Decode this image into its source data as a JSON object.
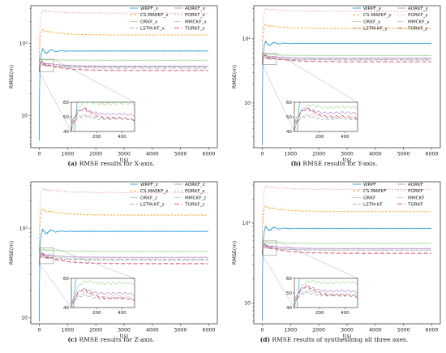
{
  "colors": {
    "WRPF": "#1f9bd6",
    "CS-MAEKF": "#f5a623",
    "ORKF": "#a9d99a",
    "LSTM-KF": "#9aa0a6",
    "AORKF": "#b48cc8",
    "PORKF": "#e7a0c8",
    "MMCKF": "#bdbdbd",
    "TORKF": "#d94060"
  },
  "chart_data": [
    {
      "type": "line",
      "caption_label": "(a)",
      "caption_text": " RMSE results for X-axis.",
      "xlabel": "t(s)",
      "ylabel": "RMSE(m)",
      "yscale": "log",
      "xlim": [
        -300,
        6300
      ],
      "ylim": [
        3.6,
        330
      ],
      "x_ticks": [
        0,
        1000,
        2000,
        3000,
        4000,
        5000,
        6000
      ],
      "y_ticks": [
        {
          "value": 10,
          "label": "10"
        },
        {
          "value": 100,
          "label": "10²"
        }
      ],
      "legend_placement": "top-right",
      "series": [
        {
          "name": "WRPF_x",
          "key": "WRPF",
          "dash": "",
          "steady": 78,
          "peak": 78,
          "start": 4.5,
          "osc": 0.15
        },
        {
          "name": "CS-MAEKF_x",
          "key": "CS-MAEKF",
          "dash": "3,2",
          "steady": 130,
          "peak": 155,
          "start": 55,
          "osc": 0.04
        },
        {
          "name": "ORKF_x",
          "key": "ORKF",
          "dash": "",
          "steady": 58,
          "peak": 60,
          "start": 40,
          "osc": 0.02
        },
        {
          "name": "LSTM-KF_x",
          "key": "LSTM-KF",
          "dash": "5,2",
          "steady": 47,
          "peak": 50,
          "start": 45,
          "osc": 0.02
        },
        {
          "name": "AORKF_x",
          "key": "AORKF",
          "dash": "",
          "steady": 48,
          "peak": 55,
          "start": 45,
          "osc": 0.03
        },
        {
          "name": "PORKF_x",
          "key": "PORKF",
          "dash": "2,2",
          "steady": 260,
          "peak": 290,
          "start": 60,
          "osc": 0.03
        },
        {
          "name": "MMCKF_x",
          "key": "MMCKF",
          "dash": "6,2,1,2",
          "steady": 45,
          "peak": 52,
          "start": 40,
          "osc": 0.02
        },
        {
          "name": "TORKF_x",
          "key": "TORKF",
          "dash": "6,3",
          "steady": 42,
          "peak": 55,
          "start": 40,
          "osc": 0.05
        }
      ],
      "inset": {
        "xlim": [
          0,
          500
        ],
        "ylim": [
          40,
          60
        ],
        "x_ticks": [
          200,
          400
        ],
        "y_ticks": [
          40,
          50,
          60
        ]
      }
    },
    {
      "type": "line",
      "caption_label": "(b)",
      "caption_text": " RMSE results for Y-axis.",
      "xlabel": "t(s)",
      "ylabel": "RMSE(m)",
      "yscale": "log",
      "xlim": [
        -300,
        6300
      ],
      "ylim": [
        2.0,
        330
      ],
      "x_ticks": [
        0,
        1000,
        2000,
        3000,
        4000,
        5000,
        6000
      ],
      "y_ticks": [
        {
          "value": 10,
          "label": "10"
        },
        {
          "value": 100,
          "label": "10²"
        }
      ],
      "legend_placement": "top-right",
      "series": [
        {
          "name": "WRPF_y",
          "key": "WRPF",
          "dash": "",
          "steady": 85,
          "peak": 85,
          "start": 2.2,
          "osc": 0.15
        },
        {
          "name": "CS-MAEKF_y",
          "key": "CS-MAEKF",
          "dash": "3,2",
          "steady": 145,
          "peak": 170,
          "start": 50,
          "osc": 0.04
        },
        {
          "name": "ORKF_y",
          "key": "ORKF",
          "dash": "",
          "steady": 55,
          "peak": 58,
          "start": 40,
          "osc": 0.02
        },
        {
          "name": "LSTM-KF_y",
          "key": "LSTM-KF",
          "dash": "5,2",
          "steady": 47,
          "peak": 50,
          "start": 45,
          "osc": 0.02
        },
        {
          "name": "AORKF_y",
          "key": "AORKF",
          "dash": "",
          "steady": 50,
          "peak": 55,
          "start": 45,
          "osc": 0.03
        },
        {
          "name": "PORKF_y",
          "key": "PORKF",
          "dash": "2,2",
          "steady": 270,
          "peak": 300,
          "start": 60,
          "osc": 0.03
        },
        {
          "name": "MMCKF_y",
          "key": "MMCKF",
          "dash": "6,2,1,2",
          "steady": 48,
          "peak": 52,
          "start": 40,
          "osc": 0.02
        },
        {
          "name": "TORKF_y",
          "key": "TORKF",
          "dash": "6,3",
          "steady": 44,
          "peak": 55,
          "start": 40,
          "osc": 0.05
        }
      ],
      "inset": {
        "xlim": [
          0,
          500
        ],
        "ylim": [
          40,
          60
        ],
        "x_ticks": [
          200,
          400
        ],
        "y_ticks": [
          40,
          50,
          60
        ]
      }
    },
    {
      "type": "line",
      "caption_label": "(c)",
      "caption_text": " RMSE results for Z-axis.",
      "xlabel": "t(s)",
      "ylabel": "RMSE(m)",
      "yscale": "log",
      "xlim": [
        -300,
        6300
      ],
      "ylim": [
        8.5,
        330
      ],
      "x_ticks": [
        0,
        1000,
        2000,
        3000,
        4000,
        5000,
        6000
      ],
      "y_ticks": [
        {
          "value": 10,
          "label": "10"
        },
        {
          "value": 100,
          "label": "10²"
        }
      ],
      "legend_placement": "top-right",
      "series": [
        {
          "name": "WRPF_z",
          "key": "WRPF",
          "dash": "",
          "steady": 92,
          "peak": 92,
          "start": 9,
          "osc": 0.12
        },
        {
          "name": "CS-MAEKF_z",
          "key": "CS-MAEKF",
          "dash": "3,2",
          "steady": 140,
          "peak": 165,
          "start": 55,
          "osc": 0.04
        },
        {
          "name": "ORKF_z",
          "key": "ORKF",
          "dash": "",
          "steady": 55,
          "peak": 58,
          "start": 40,
          "osc": 0.02
        },
        {
          "name": "LSTM-KF_z",
          "key": "LSTM-KF",
          "dash": "5,2",
          "steady": 44,
          "peak": 48,
          "start": 42,
          "osc": 0.02
        },
        {
          "name": "AORKF_z",
          "key": "AORKF",
          "dash": "",
          "steady": 47,
          "peak": 52,
          "start": 42,
          "osc": 0.03
        },
        {
          "name": "PORKF_z",
          "key": "PORKF",
          "dash": "2,2",
          "steady": 250,
          "peak": 280,
          "start": 60,
          "osc": 0.03
        },
        {
          "name": "MMCKF_z",
          "key": "MMCKF",
          "dash": "6,2,1,2",
          "steady": 45,
          "peak": 50,
          "start": 40,
          "osc": 0.02
        },
        {
          "name": "TORKF_z",
          "key": "TORKF",
          "dash": "6,3",
          "steady": 40,
          "peak": 52,
          "start": 38,
          "osc": 0.05
        }
      ],
      "inset": {
        "xlim": [
          0,
          500
        ],
        "ylim": [
          40,
          60
        ],
        "x_ticks": [
          200,
          400
        ],
        "y_ticks": [
          40,
          60
        ]
      }
    },
    {
      "type": "line",
      "caption_label": "(d)",
      "caption_text": " RMSE results of synthesizing all three axes.",
      "xlabel": "t(s)",
      "ylabel": "RMSE(m)",
      "yscale": "log",
      "xlim": [
        -300,
        6300
      ],
      "ylim": [
        5.5,
        330
      ],
      "x_ticks": [
        0,
        1000,
        2000,
        3000,
        4000,
        5000,
        6000
      ],
      "y_ticks": [
        {
          "value": 10,
          "label": "10"
        },
        {
          "value": 100,
          "label": "10²"
        }
      ],
      "legend_placement": "top-right",
      "series": [
        {
          "name": "WRPF",
          "key": "WRPF",
          "dash": "",
          "steady": 86,
          "peak": 86,
          "start": 6,
          "osc": 0.13
        },
        {
          "name": "CS-MAEKF",
          "key": "CS-MAEKF",
          "dash": "3,2",
          "steady": 140,
          "peak": 165,
          "start": 55,
          "osc": 0.04
        },
        {
          "name": "ORKF",
          "key": "ORKF",
          "dash": "",
          "steady": 56,
          "peak": 58,
          "start": 40,
          "osc": 0.02
        },
        {
          "name": "LSTM-KF",
          "key": "LSTM-KF",
          "dash": "5,2",
          "steady": 46,
          "peak": 50,
          "start": 43,
          "osc": 0.02
        },
        {
          "name": "AORKF",
          "key": "AORKF",
          "dash": "",
          "steady": 48,
          "peak": 54,
          "start": 44,
          "osc": 0.03
        },
        {
          "name": "PORKF",
          "key": "PORKF",
          "dash": "2,2",
          "steady": 265,
          "peak": 295,
          "start": 60,
          "osc": 0.03
        },
        {
          "name": "MMCKF",
          "key": "MMCKF",
          "dash": "6,2,1,2",
          "steady": 46,
          "peak": 52,
          "start": 40,
          "osc": 0.02
        },
        {
          "name": "TORKF",
          "key": "TORKF",
          "dash": "6,3",
          "steady": 42,
          "peak": 54,
          "start": 40,
          "osc": 0.05
        }
      ],
      "inset": {
        "xlim": [
          0,
          500
        ],
        "ylim": [
          40,
          60
        ],
        "x_ticks": [
          200,
          400
        ],
        "y_ticks": [
          40,
          50,
          60
        ]
      }
    }
  ]
}
